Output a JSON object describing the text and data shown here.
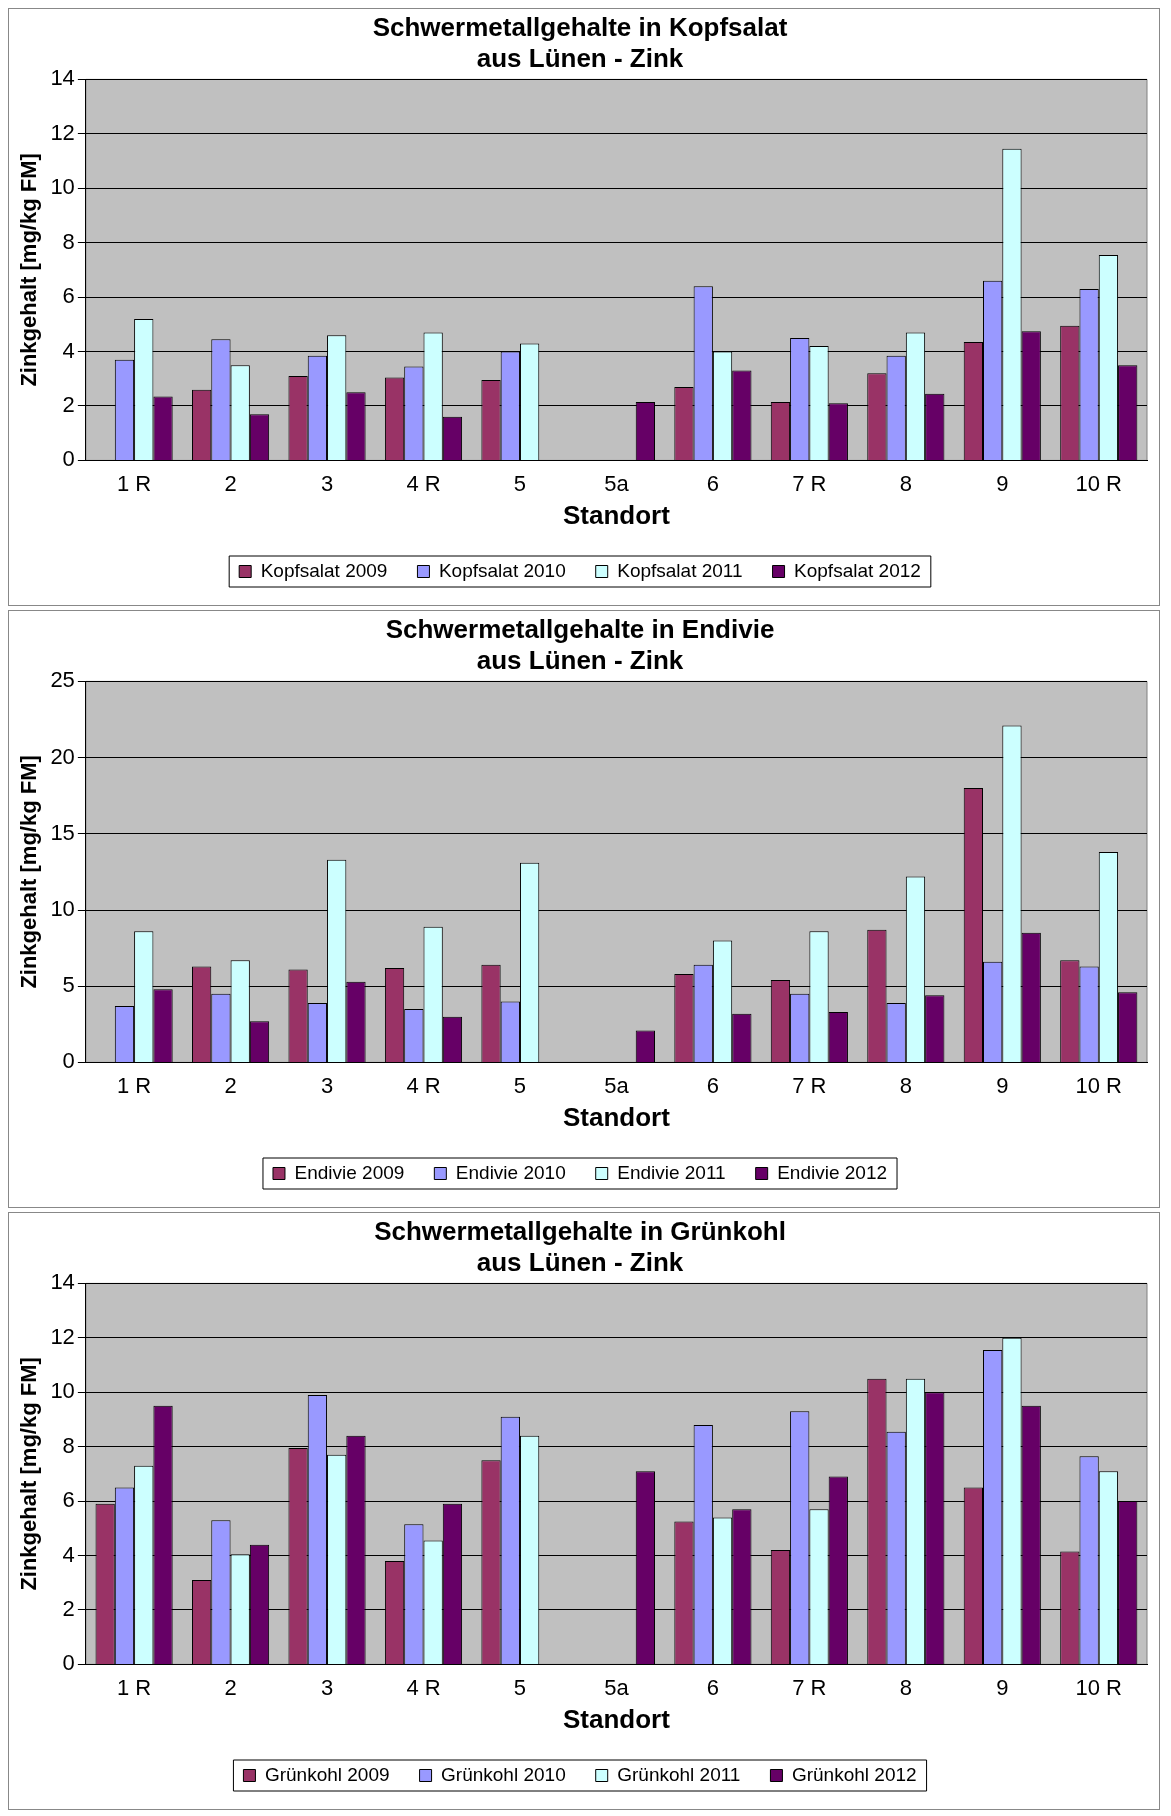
{
  "chart_data": [
    {
      "type": "bar",
      "title": "Schwermetallgehalte in Kopfsalat\naus Lünen - Zink",
      "xlabel": "Standort",
      "ylabel": "Zinkgehalt [mg/kg FM]",
      "categories": [
        "1 R",
        "2",
        "3",
        "4 R",
        "5",
        "5a",
        "6",
        "7 R",
        "8",
        "9",
        "10 R"
      ],
      "ylim": [
        0,
        14
      ],
      "yticks": [
        0,
        2,
        4,
        6,
        8,
        10,
        12,
        14
      ],
      "grid": "y",
      "legend": "bottom",
      "series": [
        {
          "name": "Kopfsalat 2009",
          "color": "#993366",
          "values": [
            null,
            2.6,
            3.1,
            3.05,
            2.95,
            null,
            2.7,
            2.15,
            3.2,
            4.35,
            4.95
          ]
        },
        {
          "name": "Kopfsalat 2010",
          "color": "#9999ff",
          "values": [
            3.7,
            4.45,
            3.85,
            3.45,
            4.0,
            null,
            6.4,
            4.5,
            3.85,
            6.6,
            6.3
          ]
        },
        {
          "name": "Kopfsalat 2011",
          "color": "#ccffff",
          "values": [
            5.2,
            3.5,
            4.6,
            4.7,
            4.3,
            null,
            4.0,
            4.2,
            4.7,
            11.45,
            7.55
          ]
        },
        {
          "name": "Kopfsalat 2012",
          "color": "#660066",
          "values": [
            2.35,
            1.7,
            2.5,
            1.6,
            null,
            2.15,
            3.3,
            2.1,
            2.45,
            4.75,
            3.5
          ]
        }
      ]
    },
    {
      "type": "bar",
      "title": "Schwermetallgehalte in Endivie\naus Lünen - Zink",
      "xlabel": "Standort",
      "ylabel": "Zinkgehalt [mg/kg FM]",
      "categories": [
        "1 R",
        "2",
        "3",
        "4 R",
        "5",
        "5a",
        "6",
        "7 R",
        "8",
        "9",
        "10 R"
      ],
      "ylim": [
        0,
        25
      ],
      "yticks": [
        0,
        5,
        10,
        15,
        20,
        25
      ],
      "grid": "y",
      "legend": "bottom",
      "series": [
        {
          "name": "Endivie 2009",
          "color": "#993366",
          "values": [
            null,
            6.3,
            6.1,
            6.2,
            6.4,
            null,
            5.8,
            5.4,
            8.7,
            18.0,
            6.7
          ]
        },
        {
          "name": "Endivie 2010",
          "color": "#9999ff",
          "values": [
            3.7,
            4.5,
            3.9,
            3.5,
            4.0,
            null,
            6.4,
            4.5,
            3.9,
            6.6,
            6.3
          ]
        },
        {
          "name": "Endivie 2011",
          "color": "#ccffff",
          "values": [
            8.6,
            6.7,
            13.3,
            8.9,
            13.1,
            null,
            8.0,
            8.6,
            12.2,
            22.1,
            13.8
          ]
        },
        {
          "name": "Endivie 2012",
          "color": "#660066",
          "values": [
            4.8,
            2.7,
            5.3,
            3.0,
            null,
            2.1,
            3.2,
            3.3,
            4.4,
            8.5,
            4.6
          ]
        }
      ]
    },
    {
      "type": "bar",
      "title": "Schwermetallgehalte in Grünkohl\naus Lünen - Zink",
      "xlabel": "Standort",
      "ylabel": "Zinkgehalt [mg/kg FM]",
      "categories": [
        "1 R",
        "2",
        "3",
        "4 R",
        "5",
        "5a",
        "6",
        "7 R",
        "8",
        "9",
        "10 R"
      ],
      "ylim": [
        0,
        14
      ],
      "yticks": [
        0,
        2,
        4,
        6,
        8,
        10,
        12,
        14
      ],
      "grid": "y",
      "legend": "bottom",
      "series": [
        {
          "name": "Grünkohl 2009",
          "color": "#993366",
          "values": [
            5.9,
            3.1,
            7.95,
            3.8,
            7.5,
            null,
            5.25,
            4.2,
            10.5,
            6.5,
            4.15
          ]
        },
        {
          "name": "Grünkohl 2010",
          "color": "#9999ff",
          "values": [
            6.5,
            5.3,
            9.9,
            5.15,
            9.1,
            null,
            8.8,
            9.3,
            8.55,
            11.55,
            7.65
          ]
        },
        {
          "name": "Grünkohl 2011",
          "color": "#ccffff",
          "values": [
            7.3,
            4.05,
            7.7,
            4.55,
            8.4,
            null,
            5.4,
            5.7,
            10.5,
            12.0,
            7.1
          ]
        },
        {
          "name": "Grünkohl 2012",
          "color": "#660066",
          "values": [
            9.5,
            4.4,
            8.4,
            5.9,
            null,
            7.1,
            5.7,
            6.9,
            10.0,
            9.5,
            6.0
          ]
        }
      ]
    }
  ]
}
